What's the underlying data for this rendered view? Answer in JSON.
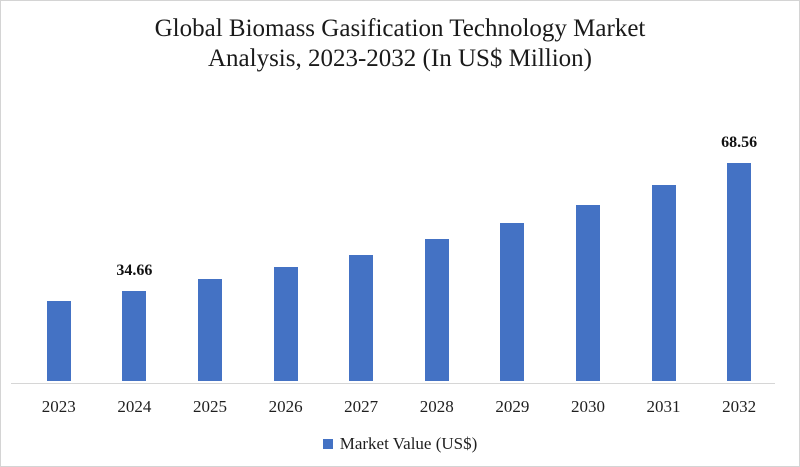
{
  "chart_data": {
    "type": "bar",
    "title": "Global Biomass Gasification Technology Market Analysis, 2023-2032 (In US$ Million)",
    "categories": [
      "2023",
      "2024",
      "2025",
      "2026",
      "2027",
      "2028",
      "2029",
      "2030",
      "2031",
      "2032"
    ],
    "series": [
      {
        "name": "Market Value (US$)",
        "color": "#4472C4",
        "values": [
          31.95,
          34.66,
          37.6,
          40.8,
          44.2,
          48.4,
          52.7,
          57.5,
          62.7,
          68.56
        ]
      }
    ],
    "data_labels": {
      "2024": "34.66",
      "2032": "68.56"
    },
    "xlabel": "",
    "ylabel": "",
    "ylim": [
      10.6,
      80
    ],
    "y_axis_visible": false,
    "gridlines": false,
    "legend_position": "bottom"
  },
  "legend": {
    "label": "Market Value (US$)",
    "swatch_color": "#4472C4"
  },
  "colors": {
    "bar": "#4472C4",
    "axis_line": "#d6d6d6",
    "title_text": "#1a1a1a"
  }
}
